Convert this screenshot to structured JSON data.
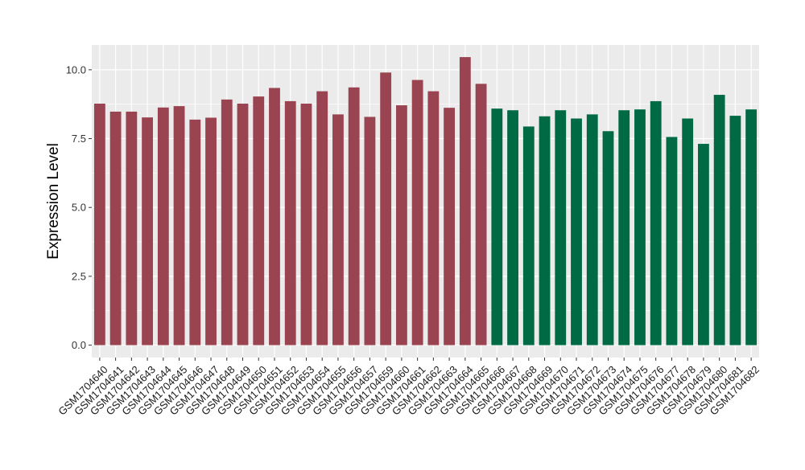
{
  "chart_data": {
    "type": "bar",
    "title": "",
    "xlabel": "",
    "ylabel": "Expression Level",
    "ylim": [
      -0.45,
      10.9
    ],
    "yticks": [
      0.0,
      2.5,
      5.0,
      7.5,
      10.0
    ],
    "ytick_labels": [
      "0.0",
      "2.5",
      "5.0",
      "7.5",
      "10.0"
    ],
    "grid": true,
    "legend": "none",
    "colors": {
      "panel_background": "#ebebeb",
      "grid": "#ffffff",
      "group_1": "#9b4451",
      "group_2": "#006a45"
    },
    "categories": [
      "GSM1704640",
      "GSM1704641",
      "GSM1704642",
      "GSM1704643",
      "GSM1704644",
      "GSM1704645",
      "GSM1704646",
      "GSM1704647",
      "GSM1704648",
      "GSM1704649",
      "GSM1704650",
      "GSM1704651",
      "GSM1704652",
      "GSM1704653",
      "GSM1704654",
      "GSM1704655",
      "GSM1704656",
      "GSM1704657",
      "GSM1704659",
      "GSM1704660",
      "GSM1704661",
      "GSM1704662",
      "GSM1704663",
      "GSM1704664",
      "GSM1704665",
      "GSM1704666",
      "GSM1704667",
      "GSM1704668",
      "GSM1704669",
      "GSM1704670",
      "GSM1704671",
      "GSM1704672",
      "GSM1704673",
      "GSM1704674",
      "GSM1704675",
      "GSM1704676",
      "GSM1704677",
      "GSM1704678",
      "GSM1704679",
      "GSM1704680",
      "GSM1704681",
      "GSM1704682"
    ],
    "values": [
      8.77,
      8.48,
      8.48,
      8.27,
      8.63,
      8.68,
      8.19,
      8.26,
      8.92,
      8.77,
      9.03,
      9.34,
      8.86,
      8.77,
      9.22,
      8.38,
      9.36,
      8.29,
      9.9,
      8.71,
      9.63,
      9.22,
      8.62,
      10.46,
      9.49,
      8.59,
      8.53,
      7.94,
      8.31,
      8.53,
      8.23,
      8.38,
      7.77,
      8.53,
      8.56,
      8.86,
      7.56,
      8.23,
      7.31,
      9.09,
      8.33,
      8.56
    ],
    "group_index": [
      0,
      0,
      0,
      0,
      0,
      0,
      0,
      0,
      0,
      0,
      0,
      0,
      0,
      0,
      0,
      0,
      0,
      0,
      0,
      0,
      0,
      0,
      0,
      0,
      0,
      1,
      1,
      1,
      1,
      1,
      1,
      1,
      1,
      1,
      1,
      1,
      1,
      1,
      1,
      1,
      1,
      1
    ]
  }
}
